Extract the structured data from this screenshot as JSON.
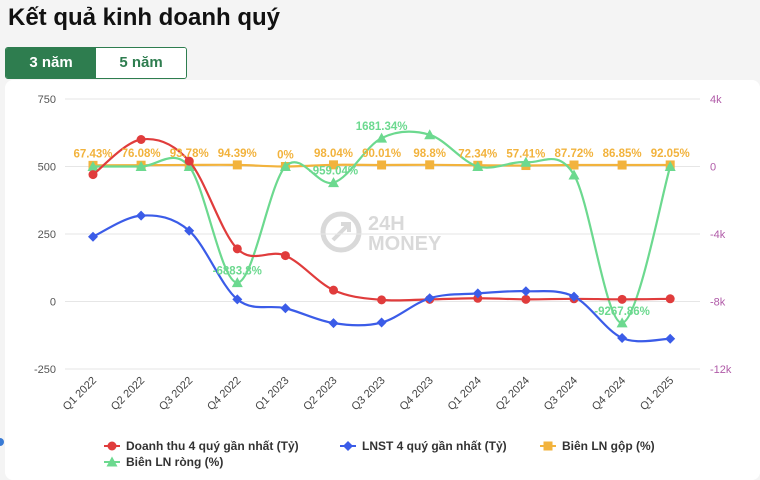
{
  "header": {
    "title": "Kết quả kinh doanh quý"
  },
  "tabs": [
    {
      "label": "3 năm",
      "active": true
    },
    {
      "label": "5 năm",
      "active": false
    }
  ],
  "watermark": {
    "text_top": "24H",
    "text_bottom": "MONEY"
  },
  "chart_data": {
    "type": "line",
    "categories": [
      "Q1 2022",
      "Q2 2022",
      "Q3 2022",
      "Q4 2022",
      "Q1 2023",
      "Q2 2023",
      "Q3 2023",
      "Q4 2023",
      "Q1 2024",
      "Q2 2024",
      "Q3 2024",
      "Q4 2024",
      "Q1 2025"
    ],
    "y_left": {
      "ticks": [
        "750",
        "500",
        "250",
        "0",
        "-250"
      ],
      "range": [
        -250,
        750
      ]
    },
    "y_right": {
      "ticks": [
        "4k",
        "0",
        "-4k",
        "-8k",
        "-12k"
      ],
      "range": [
        -12000,
        4000
      ]
    },
    "series": [
      {
        "name": "Doanh thu 4 quý gần nhất (Tỷ)",
        "axis": "left",
        "color": "#e03c3c",
        "marker": "circle",
        "values": [
          470,
          600,
          520,
          195,
          170,
          42,
          6,
          8,
          12,
          8,
          10,
          8,
          10
        ]
      },
      {
        "name": "LNST 4 quý gần nhất (Tỷ)",
        "axis": "left",
        "color": "#3b5ce8",
        "marker": "diamond",
        "values": [
          240,
          318,
          262,
          8,
          -25,
          -80,
          -78,
          12,
          30,
          38,
          18,
          -135,
          -138
        ]
      },
      {
        "name": "Biên LN gộp (%)",
        "axis": "right",
        "color": "#f2b33d",
        "marker": "square",
        "values": [
          67.43,
          76.08,
          93.78,
          94.39,
          0,
          98.04,
          90.01,
          98.8,
          72.34,
          57.41,
          87.72,
          86.85,
          92.05
        ],
        "labels": [
          "67.43%",
          "76.08%",
          "93.78%",
          "94.39%",
          "0%",
          "98.04%",
          "90.01%",
          "98.8%",
          "72.34%",
          "57.41%",
          "87.72%",
          "86.85%",
          "92.05%"
        ]
      },
      {
        "name": "Biên LN ròng (%)",
        "axis": "right",
        "color": "#6cd98f",
        "marker": "triangle",
        "values": [
          0,
          0,
          0,
          -6883.8,
          0,
          -959.04,
          1681.34,
          1880,
          0,
          250,
          -500,
          -9267.86,
          0
        ],
        "labels": [
          "",
          "",
          "",
          "-6883.8%",
          "",
          "-959.04%",
          "1681.34%",
          "",
          "",
          "",
          "",
          "-9267.86%",
          ""
        ]
      }
    ]
  }
}
